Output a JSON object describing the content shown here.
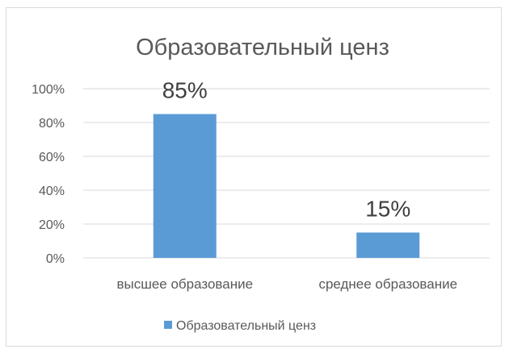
{
  "chart_data": {
    "type": "bar",
    "title": "Образовательный ценз",
    "categories": [
      "высшее образование",
      "среднее образование"
    ],
    "series": [
      {
        "name": "Образовательный ценз",
        "values": [
          0.85,
          0.15
        ],
        "data_labels": [
          "85%",
          "15%"
        ],
        "color": "#5b9bd5"
      }
    ],
    "y_ticks": [
      "0%",
      "20%",
      "40%",
      "60%",
      "80%",
      "100%"
    ],
    "ylim": [
      0,
      1
    ],
    "grid": true,
    "legend_position": "bottom"
  }
}
